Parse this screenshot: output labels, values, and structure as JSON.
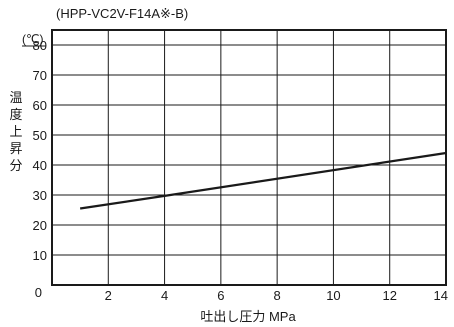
{
  "chart_data": {
    "type": "line",
    "title": "(HPP-VC2V-F14A※-B)",
    "xlabel": "吐出し圧力 MPa",
    "ylabel": "温度上昇分",
    "y_unit": "(℃)",
    "xlim": [
      0,
      14
    ],
    "ylim": [
      0,
      85
    ],
    "x_ticks": [
      2,
      4,
      6,
      8,
      10,
      12,
      14
    ],
    "y_ticks": [
      10,
      20,
      30,
      40,
      50,
      60,
      70,
      80
    ],
    "origin_label": "0",
    "grid": true,
    "series": [
      {
        "x": [
          1,
          4,
          14
        ],
        "y": [
          25.5,
          29.7,
          44
        ]
      }
    ],
    "colors": {
      "line": "#1a1a1a",
      "grid": "#1a1a1a",
      "background": "#ffffff"
    }
  }
}
